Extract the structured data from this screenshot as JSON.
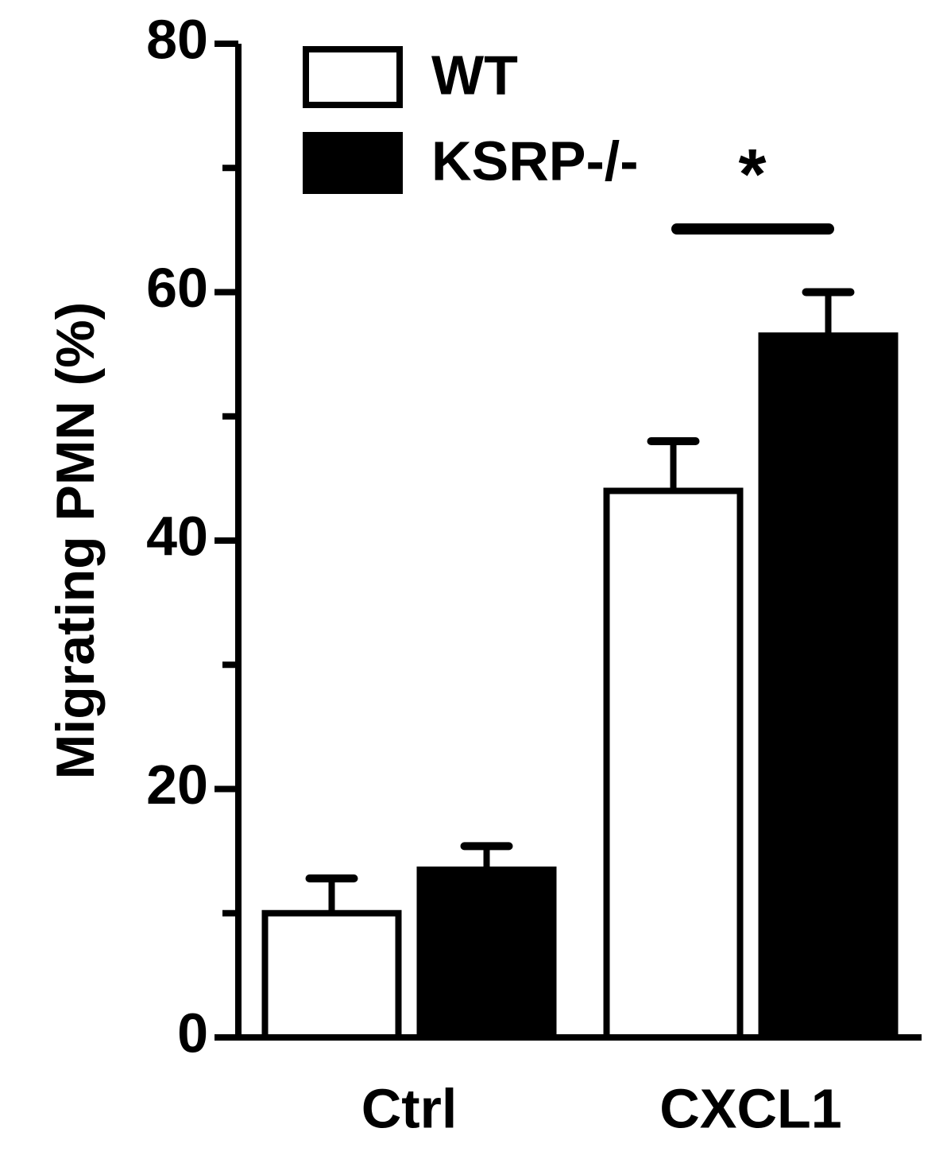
{
  "chart_data": {
    "type": "bar",
    "y_label": "Migrating PMN (%)",
    "categories": [
      "Ctrl",
      "CXCL1"
    ],
    "series": [
      {
        "name": "WT",
        "color": "#ffffff",
        "values": [
          10,
          44
        ],
        "errors": [
          2.8,
          4
        ]
      },
      {
        "name": "KSRP-/-",
        "color": "#000000",
        "values": [
          13.5,
          56.5
        ],
        "errors": [
          1.9,
          3.5
        ]
      }
    ],
    "ylim": [
      0,
      80
    ],
    "yticks": [
      0,
      20,
      40,
      60,
      80
    ],
    "minor_yticks": [
      10,
      30,
      50,
      70
    ],
    "annotation": "*",
    "legend": "top-left"
  }
}
